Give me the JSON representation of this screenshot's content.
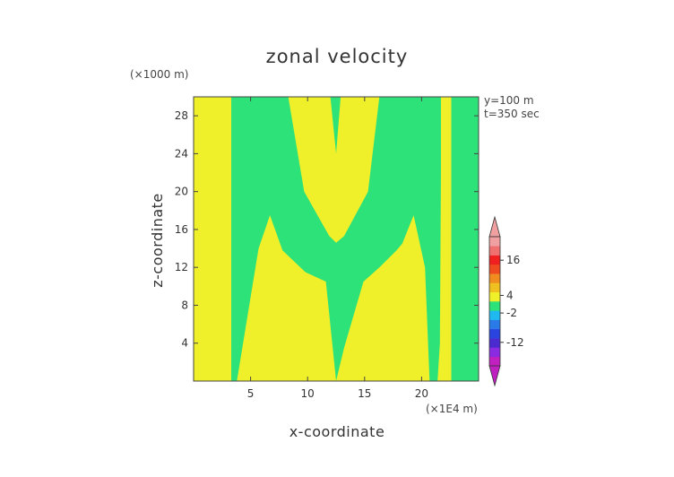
{
  "chart_data": {
    "type": "heatmap",
    "title": "zonal velocity",
    "xlabel": "x-coordinate",
    "ylabel": "z-coordinate",
    "x_unit": "(×1E4 m)",
    "y_unit": "(×1000 m)",
    "annotations": [
      "y=100 m",
      "t=350 sec"
    ],
    "xlim": [
      0,
      25
    ],
    "ylim": [
      0,
      30
    ],
    "xticks": [
      5,
      10,
      15,
      20
    ],
    "yticks": [
      4,
      8,
      12,
      16,
      20,
      24,
      28
    ],
    "colors": {
      "positive_small": "#f0f02a",
      "near_zero": "#2ee27a"
    },
    "regions": [
      {
        "name": "left-green-band",
        "color": "near_zero",
        "polygon": [
          [
            3.3,
            0
          ],
          [
            3.3,
            30
          ],
          [
            8.3,
            30
          ],
          [
            9.7,
            20
          ],
          [
            11.9,
            15.3
          ],
          [
            12.5,
            14.6
          ],
          [
            12.5,
            0
          ],
          [
            11.6,
            10.5
          ],
          [
            9.8,
            11.5
          ],
          [
            7.8,
            13.8
          ],
          [
            6.7,
            17.5
          ],
          [
            5.7,
            14
          ],
          [
            3.8,
            0
          ]
        ]
      },
      {
        "name": "right-green-band",
        "color": "near_zero",
        "polygon": [
          [
            12.5,
            0
          ],
          [
            12.5,
            14.6
          ],
          [
            13.2,
            15.3
          ],
          [
            15.3,
            20
          ],
          [
            16.3,
            30
          ],
          [
            21.7,
            30
          ],
          [
            21.7,
            22
          ],
          [
            21.6,
            4
          ],
          [
            21.4,
            0
          ],
          [
            20.7,
            0
          ],
          [
            20.3,
            12
          ],
          [
            19.3,
            17.5
          ],
          [
            18.3,
            14.5
          ],
          [
            17.8,
            13.8
          ],
          [
            16.3,
            12
          ],
          [
            14.9,
            10.5
          ],
          [
            13.2,
            3.5
          ]
        ]
      },
      {
        "name": "right-edge-green",
        "color": "near_zero",
        "polygon": [
          [
            22.6,
            0
          ],
          [
            22.6,
            30
          ],
          [
            25,
            30
          ],
          [
            25,
            0
          ]
        ]
      },
      {
        "name": "center-green-sliver",
        "color": "near_zero",
        "polygon": [
          [
            12,
            30
          ],
          [
            12.5,
            24
          ],
          [
            12.9,
            30
          ]
        ]
      }
    ],
    "colorbar": {
      "tick_labels": [
        "16",
        "4",
        "-2",
        "-12"
      ],
      "tick_values": [
        16,
        4,
        -2,
        -12
      ],
      "range": [
        -20,
        24
      ],
      "colors": [
        "#c020c0",
        "#8a2be2",
        "#4b2bd0",
        "#2a44e0",
        "#2a7ae8",
        "#20b8f0",
        "#2ee27a",
        "#f0f02a",
        "#f0c020",
        "#f08c20",
        "#f04a20",
        "#f02020",
        "#f07070",
        "#f0a0a0"
      ]
    }
  }
}
